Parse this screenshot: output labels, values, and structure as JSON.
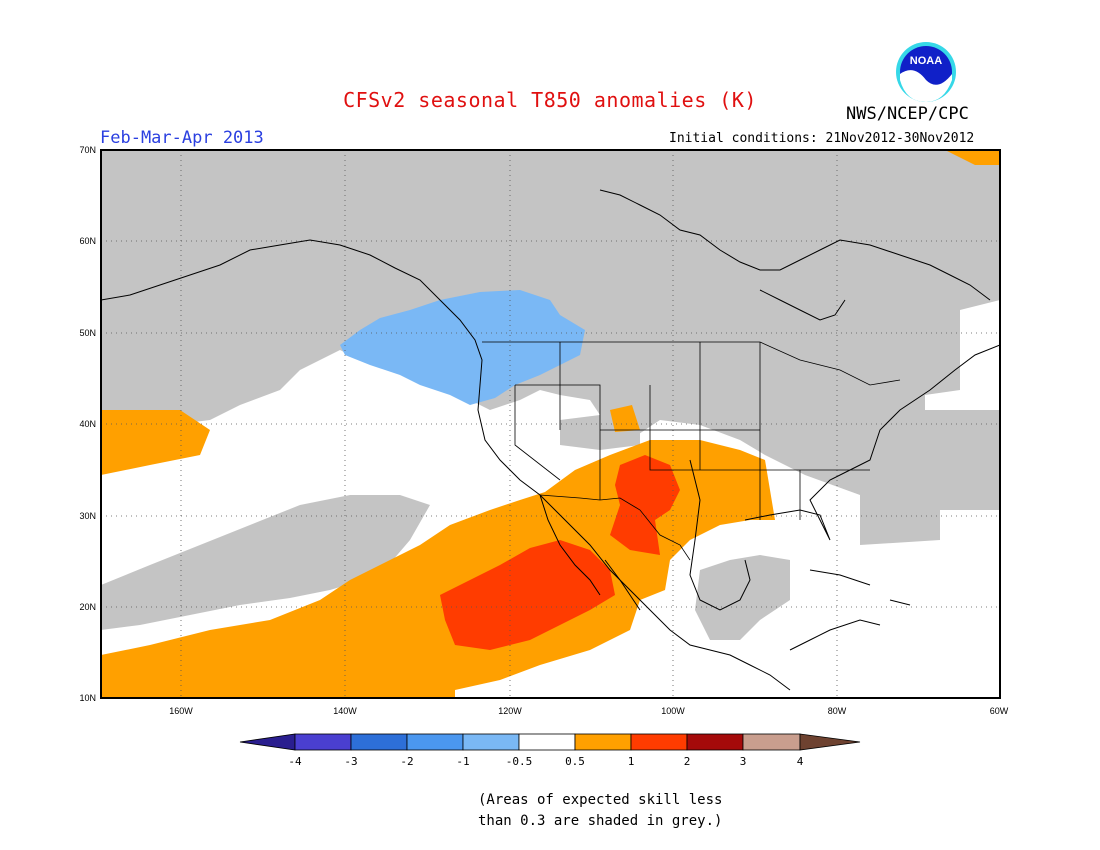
{
  "header": {
    "title": "CFSv2 seasonal T850 anomalies (K)",
    "organization": "NWS/NCEP/CPC",
    "logo_text": "NOAA",
    "period": "Feb-Mar-Apr 2013",
    "initial_conditions": "Initial conditions: 21Nov2012-30Nov2012"
  },
  "map": {
    "lat_labels": [
      "70N",
      "60N",
      "50N",
      "40N",
      "30N",
      "20N",
      "10N"
    ],
    "lon_labels": [
      "160W",
      "140W",
      "120W",
      "100W",
      "80W",
      "60W"
    ],
    "region": "North America / NE Pacific",
    "grid": "dotted"
  },
  "colorbar": {
    "labels": [
      "-4",
      "-3",
      "-2",
      "-1",
      "-0.5",
      "0.5",
      "1",
      "2",
      "3",
      "4"
    ],
    "colors": [
      "#2a1e8f",
      "#4a3fd0",
      "#2d6fd8",
      "#4b97ef",
      "#7ab8f5",
      "#ffffff",
      "#ffa000",
      "#ff3c00",
      "#a50a0a",
      "#c99e8e",
      "#6e4230"
    ]
  },
  "footnote": {
    "line1": "(Areas of expected skill less",
    "line2": "than 0.3 are shaded in grey.)"
  },
  "colors": {
    "title": "#e01010",
    "period": "#2a3fe0",
    "no_skill_grey": "#c4c4c4"
  }
}
